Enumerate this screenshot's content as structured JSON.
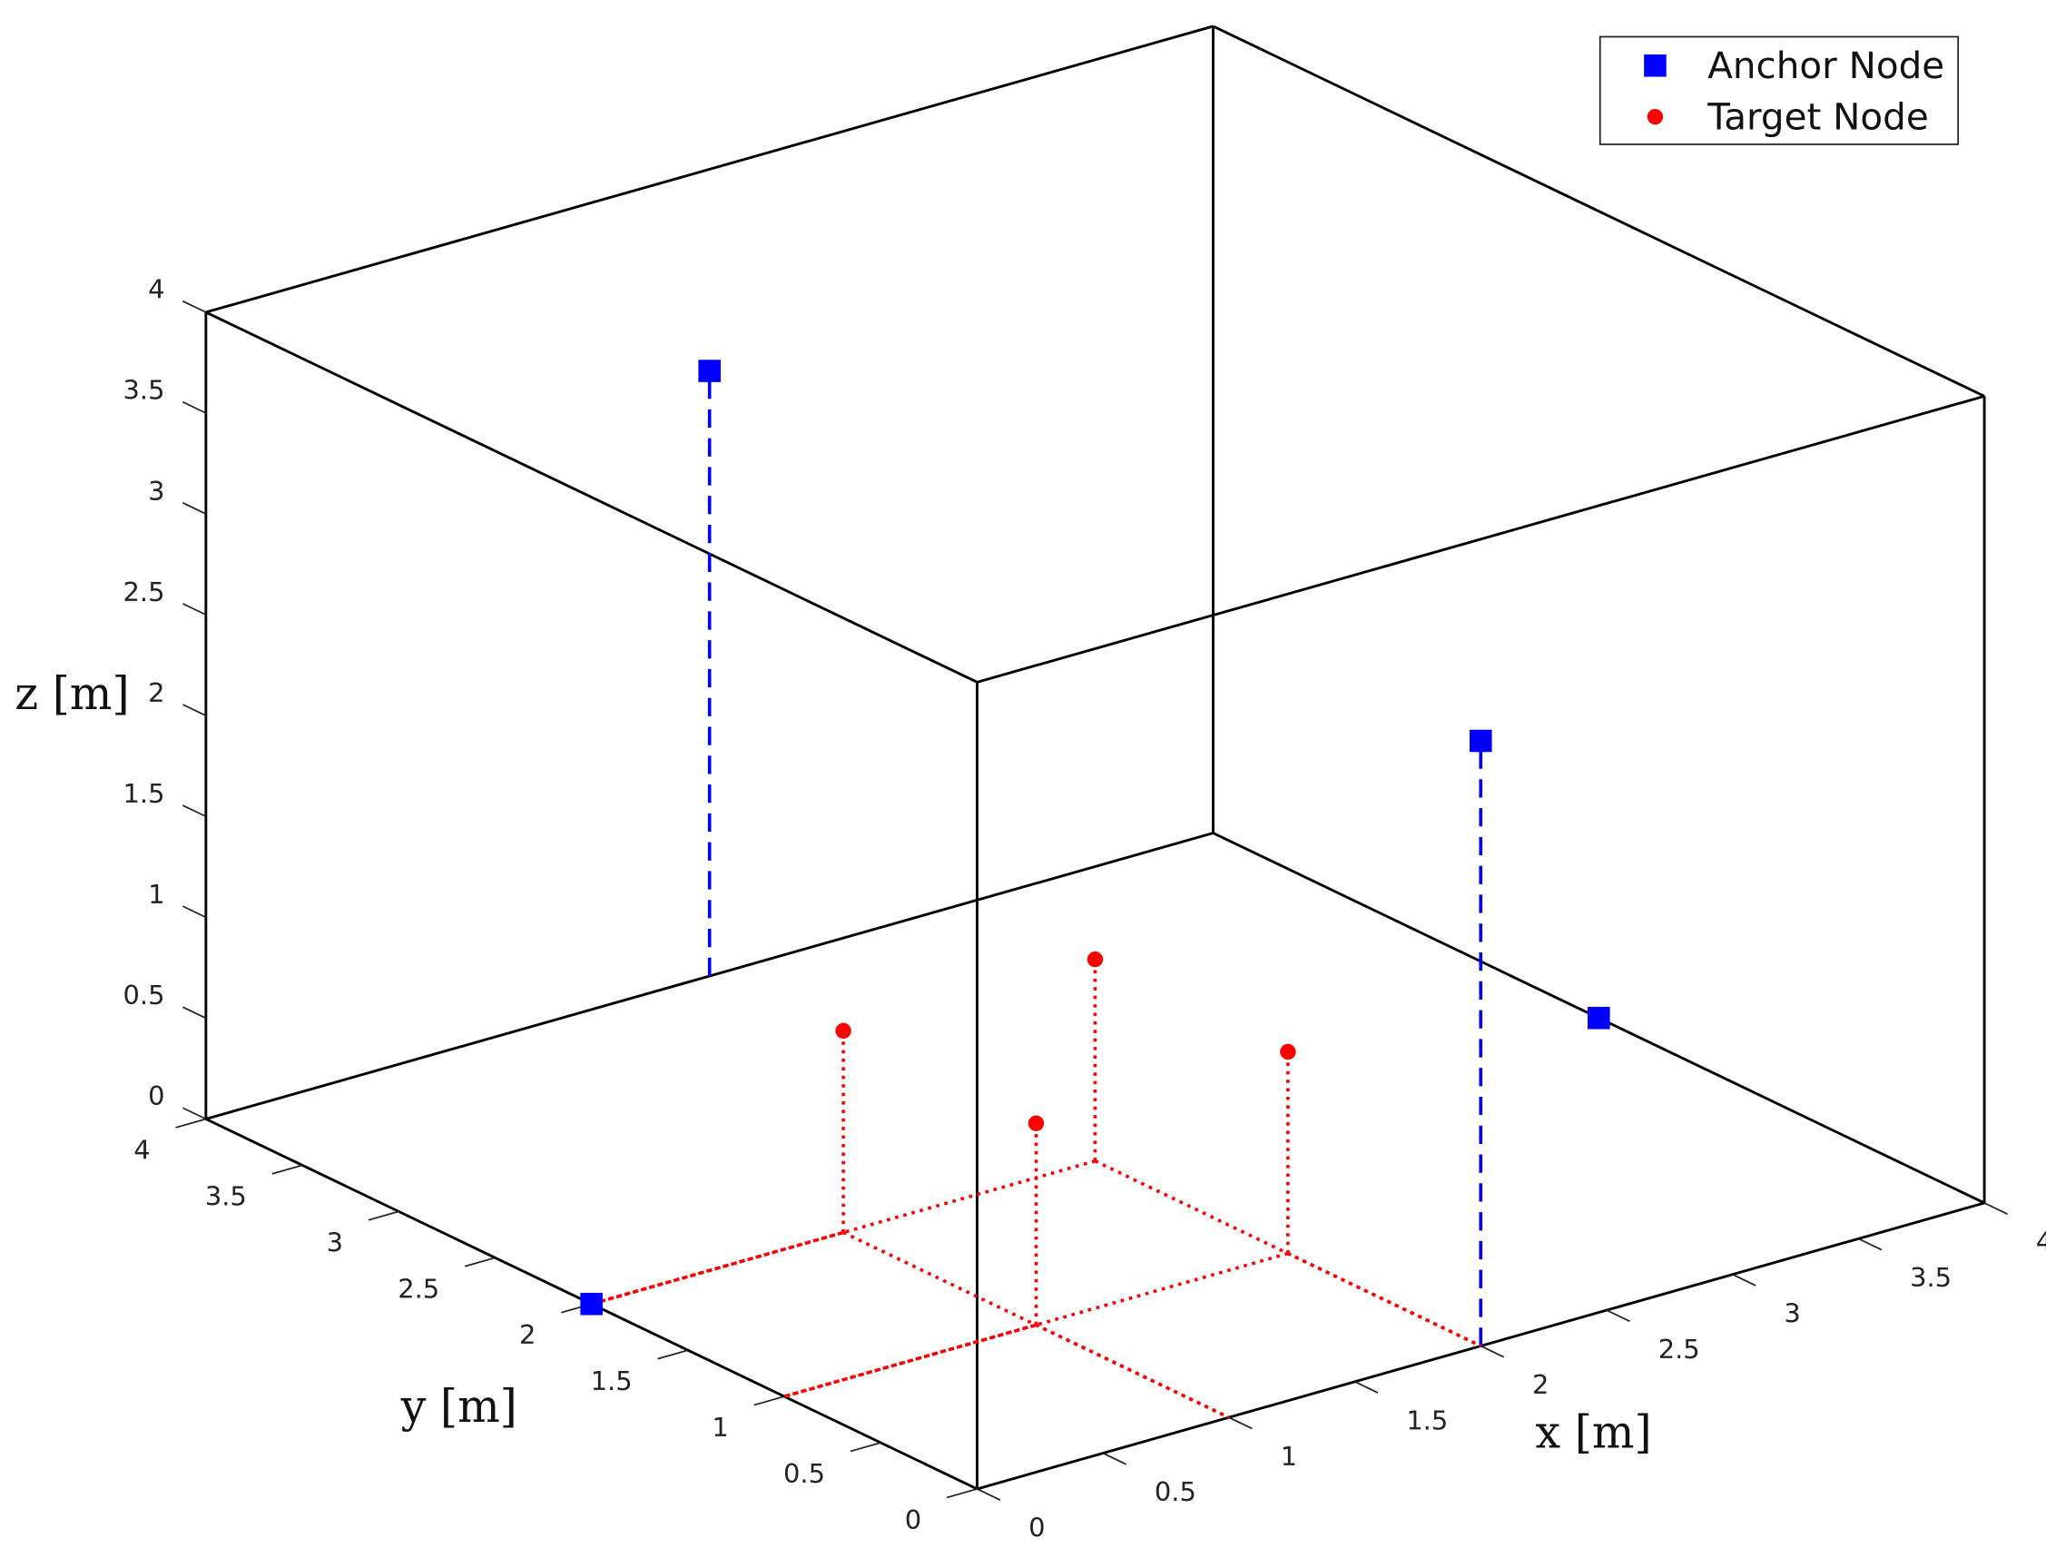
{
  "chart_data": {
    "type": "scatter3d",
    "xlabel": "x [m]",
    "ylabel": "y [m]",
    "zlabel": "z [m]",
    "xlim": [
      0,
      4
    ],
    "ylim": [
      0,
      4
    ],
    "zlim": [
      0,
      4
    ],
    "xticks": [
      0,
      0.5,
      1,
      1.5,
      2,
      2.5,
      3,
      3.5,
      4
    ],
    "yticks": [
      0,
      0.5,
      1,
      1.5,
      2,
      2.5,
      3,
      3.5,
      4
    ],
    "zticks": [
      0,
      0.5,
      1,
      1.5,
      2,
      2.5,
      3,
      3.5,
      4
    ],
    "legend": "upper right",
    "series": [
      {
        "name": "Anchor Node",
        "color": "#0000ff",
        "marker": "square",
        "stem": "dashed",
        "projection": false,
        "x": [
          0,
          4,
          2,
          2
        ],
        "y": [
          2,
          2,
          4,
          0
        ],
        "z": [
          0,
          0,
          3,
          3
        ]
      },
      {
        "name": "Target Node",
        "color": "#ff0000",
        "marker": "circle",
        "stem": "dotted",
        "projection": true,
        "x": [
          1,
          2,
          2,
          1
        ],
        "y": [
          2,
          2,
          1,
          1
        ],
        "z": [
          1,
          1,
          1,
          1
        ]
      }
    ]
  }
}
